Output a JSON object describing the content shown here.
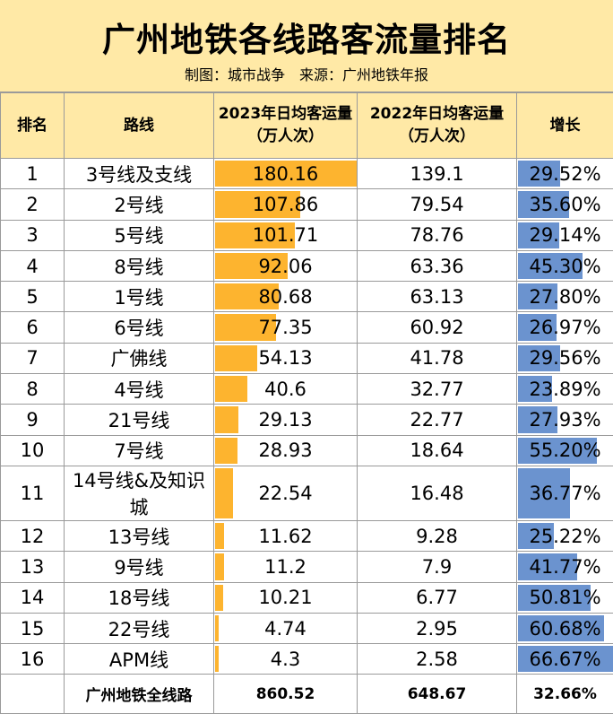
{
  "header": {
    "title": "广州地铁各线路客流量排名",
    "subtitle": "制图：城市战争　来源：广州地铁年报"
  },
  "colors": {
    "header_bg": "#ffe9a6",
    "bar_2023": "#fdb42f",
    "bar_growth": "#6b93cf"
  },
  "chart_data": {
    "type": "table",
    "columns": [
      "排名",
      "路线",
      "2023年日均客运量\n（万人次）",
      "2022年日均客运量\n（万人次）",
      "增长"
    ],
    "rows": [
      {
        "rank": "1",
        "line": "3号线及支线",
        "v2023": 180.16,
        "v2023_label": "180.16",
        "v2022": "139.1",
        "growth": 29.52,
        "growth_label": "29.52%"
      },
      {
        "rank": "2",
        "line": "2号线",
        "v2023": 107.86,
        "v2023_label": "107.86",
        "v2022": "79.54",
        "growth": 35.6,
        "growth_label": "35.60%"
      },
      {
        "rank": "3",
        "line": "5号线",
        "v2023": 101.71,
        "v2023_label": "101.71",
        "v2022": "78.76",
        "growth": 29.14,
        "growth_label": "29.14%"
      },
      {
        "rank": "4",
        "line": "8号线",
        "v2023": 92.06,
        "v2023_label": "92.06",
        "v2022": "63.36",
        "growth": 45.3,
        "growth_label": "45.30%"
      },
      {
        "rank": "5",
        "line": "1号线",
        "v2023": 80.68,
        "v2023_label": "80.68",
        "v2022": "63.13",
        "growth": 27.8,
        "growth_label": "27.80%"
      },
      {
        "rank": "6",
        "line": "6号线",
        "v2023": 77.35,
        "v2023_label": "77.35",
        "v2022": "60.92",
        "growth": 26.97,
        "growth_label": "26.97%"
      },
      {
        "rank": "7",
        "line": "广佛线",
        "v2023": 54.13,
        "v2023_label": "54.13",
        "v2022": "41.78",
        "growth": 29.56,
        "growth_label": "29.56%"
      },
      {
        "rank": "8",
        "line": "4号线",
        "v2023": 40.6,
        "v2023_label": "40.6",
        "v2022": "32.77",
        "growth": 23.89,
        "growth_label": "23.89%"
      },
      {
        "rank": "9",
        "line": "21号线",
        "v2023": 29.13,
        "v2023_label": "29.13",
        "v2022": "22.77",
        "growth": 27.93,
        "growth_label": "27.93%"
      },
      {
        "rank": "10",
        "line": "7号线",
        "v2023": 28.93,
        "v2023_label": "28.93",
        "v2022": "18.64",
        "growth": 55.2,
        "growth_label": "55.20%"
      },
      {
        "rank": "11",
        "line": "14号线&及知识城",
        "v2023": 22.54,
        "v2023_label": "22.54",
        "v2022": "16.48",
        "growth": 36.77,
        "growth_label": "36.77%"
      },
      {
        "rank": "12",
        "line": "13号线",
        "v2023": 11.62,
        "v2023_label": "11.62",
        "v2022": "9.28",
        "growth": 25.22,
        "growth_label": "25.22%"
      },
      {
        "rank": "13",
        "line": "9号线",
        "v2023": 11.2,
        "v2023_label": "11.2",
        "v2022": "7.9",
        "growth": 41.77,
        "growth_label": "41.77%"
      },
      {
        "rank": "14",
        "line": "18号线",
        "v2023": 10.21,
        "v2023_label": "10.21",
        "v2022": "6.77",
        "growth": 50.81,
        "growth_label": "50.81%"
      },
      {
        "rank": "15",
        "line": "22号线",
        "v2023": 4.74,
        "v2023_label": "4.74",
        "v2022": "2.95",
        "growth": 60.68,
        "growth_label": "60.68%"
      },
      {
        "rank": "16",
        "line": "APM线",
        "v2023": 4.3,
        "v2023_label": "4.3",
        "v2022": "2.58",
        "growth": 66.67,
        "growth_label": "66.67%"
      }
    ],
    "total": {
      "label": "广州地铁全线路",
      "v2023": "860.52",
      "v2022": "648.67",
      "growth": "32.66%"
    },
    "bar_max": {
      "v2023": 180.16,
      "growth": 66.67
    }
  }
}
